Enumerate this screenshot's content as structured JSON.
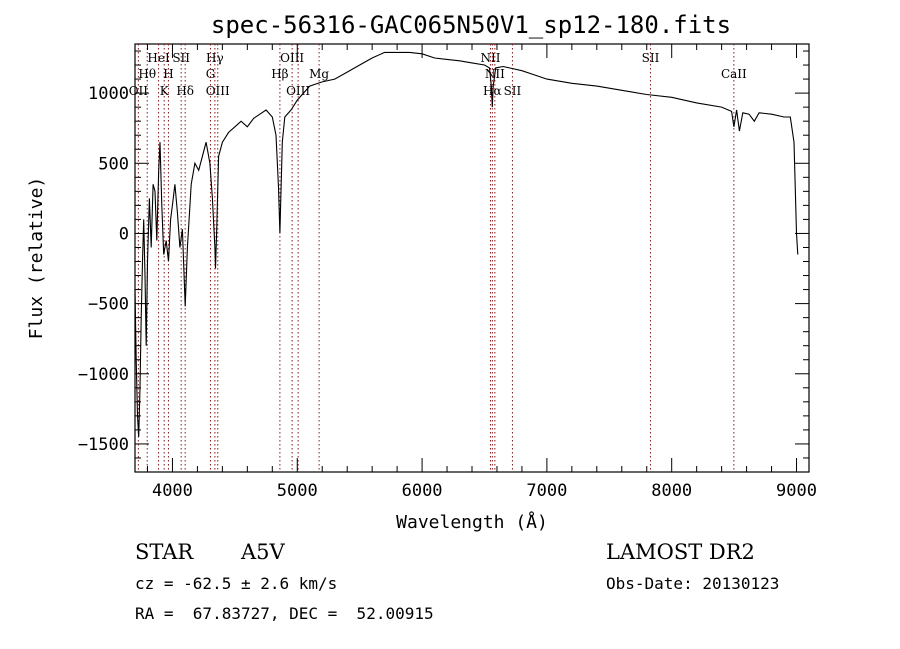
{
  "chart_data": {
    "type": "line",
    "title": "spec-56316-GAC065N50V1_sp12-180.fits",
    "xlabel": "Wavelength (Å)",
    "ylabel": "Flux (relative)",
    "xlim": [
      3700,
      9100
    ],
    "ylim": [
      -1700,
      1350
    ],
    "xticks": [
      4000,
      5000,
      6000,
      7000,
      8000,
      9000
    ],
    "yticks": [
      -1500,
      -1000,
      -500,
      0,
      500,
      1000
    ],
    "grid": false,
    "series": [
      {
        "x": [
          3700,
          3710,
          3720,
          3730,
          3740,
          3750,
          3760,
          3770,
          3780,
          3790,
          3800,
          3815,
          3830,
          3845,
          3860,
          3875,
          3890,
          3900,
          3915,
          3930,
          3950,
          3968,
          3985,
          4000,
          4020,
          4040,
          4060,
          4080,
          4102,
          4120,
          4150,
          4180,
          4210,
          4240,
          4270,
          4300,
          4320,
          4340,
          4345,
          4355,
          4370,
          4400,
          4450,
          4500,
          4550,
          4600,
          4650,
          4700,
          4750,
          4800,
          4830,
          4850,
          4861,
          4868,
          4880,
          4900,
          4950,
          5000,
          5100,
          5200,
          5300,
          5400,
          5500,
          5600,
          5700,
          5800,
          5900,
          6000,
          6100,
          6200,
          6300,
          6400,
          6500,
          6540,
          6555,
          6563,
          6570,
          6590,
          6650,
          6700,
          6800,
          6900,
          7000,
          7200,
          7400,
          7600,
          7800,
          8000,
          8200,
          8400,
          8480,
          8498,
          8520,
          8542,
          8570,
          8620,
          8662,
          8700,
          8800,
          8900,
          8950,
          8980,
          9000,
          9010
        ],
        "y": [
          -400,
          -900,
          -1300,
          -1450,
          -1100,
          -600,
          -200,
          100,
          -300,
          -800,
          -200,
          250,
          -100,
          350,
          300,
          -50,
          450,
          650,
          200,
          -150,
          -50,
          -200,
          100,
          200,
          350,
          150,
          -100,
          30,
          -520,
          -100,
          350,
          500,
          450,
          550,
          650,
          500,
          250,
          -100,
          -250,
          50,
          550,
          650,
          720,
          760,
          800,
          760,
          820,
          850,
          880,
          830,
          700,
          330,
          0,
          250,
          650,
          830,
          880,
          950,
          1050,
          1080,
          1100,
          1150,
          1200,
          1250,
          1290,
          1290,
          1290,
          1280,
          1250,
          1240,
          1230,
          1215,
          1200,
          1180,
          1050,
          900,
          1050,
          1180,
          1190,
          1180,
          1160,
          1130,
          1100,
          1070,
          1050,
          1020,
          990,
          970,
          930,
          900,
          870,
          760,
          880,
          730,
          860,
          850,
          800,
          860,
          850,
          830,
          830,
          650,
          0,
          -150
        ]
      }
    ],
    "lines": [
      {
        "label": "Hθ",
        "wl": 3798,
        "row": 2
      },
      {
        "label": "OII",
        "wl": 3727,
        "row": 3
      },
      {
        "label": "HeI",
        "wl": 3889,
        "row": 1
      },
      {
        "label": "SII",
        "wl": 4070,
        "row": 1
      },
      {
        "label": "H",
        "wl": 3968,
        "row": 2
      },
      {
        "label": "K",
        "wl": 3934,
        "row": 3
      },
      {
        "label": "Hδ",
        "wl": 4102,
        "row": 3
      },
      {
        "label": "Hγ",
        "wl": 4340,
        "row": 1
      },
      {
        "label": "G",
        "wl": 4305,
        "row": 2
      },
      {
        "label": "OIII",
        "wl": 4363,
        "row": 3
      },
      {
        "label": "OIII",
        "wl": 4959,
        "row": 1
      },
      {
        "label": "Hβ",
        "wl": 4861,
        "row": 2
      },
      {
        "label": "OIII",
        "wl": 5007,
        "row": 3
      },
      {
        "label": "Mg",
        "wl": 5175,
        "row": 2
      },
      {
        "label": "NII",
        "wl": 6548,
        "row": 1
      },
      {
        "label": "NII",
        "wl": 6583,
        "row": 2
      },
      {
        "label": "Hα",
        "wl": 6563,
        "row": 3
      },
      {
        "label": "SII",
        "wl": 6724,
        "row": 3
      },
      {
        "label": "SII",
        "wl": 7830,
        "row": 1
      },
      {
        "label": "CaII",
        "wl": 8498,
        "row": 2
      }
    ],
    "line_color": "#8b1a1a"
  },
  "info": {
    "class": "STAR",
    "subclass": "A5V",
    "survey": "LAMOST DR2",
    "cz": "cz = -62.5 ± 2.6 km/s",
    "obsdate": "Obs-Date: 20130123",
    "radec": "RA =  67.83727, DEC =  52.00915"
  }
}
